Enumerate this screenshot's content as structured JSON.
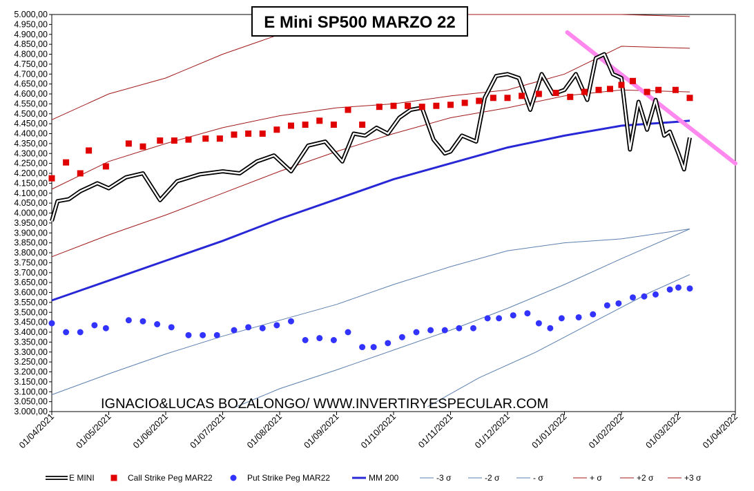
{
  "chart_data": {
    "type": "line",
    "title": "E Mini SP500 MARZO 22",
    "xlabel": "",
    "ylabel": "",
    "annotation": "IGNACIO&LUCAS BOZALONGO/ WWW.INVERTIRYESPECULAR.COM",
    "ylim": [
      3000,
      5000
    ],
    "ystep": 50,
    "x_ticks": [
      "01/04/2021",
      "01/05/2021",
      "01/06/2021",
      "01/07/2021",
      "01/08/2021",
      "01/09/2021",
      "01/10/2021",
      "01/11/2021",
      "01/12/2021",
      "01/01/2022",
      "01/02/2022",
      "01/03/2022",
      "01/04/2022"
    ],
    "y_tick_labels": [
      "3.000,00",
      "3.050,00",
      "3.100,00",
      "3.150,00",
      "3.200,00",
      "3.250,00",
      "3.300,00",
      "3.350,00",
      "3.400,00",
      "3.450,00",
      "3.500,00",
      "3.550,00",
      "3.600,00",
      "3.650,00",
      "3.700,00",
      "3.750,00",
      "3.800,00",
      "3.850,00",
      "3.900,00",
      "3.950,00",
      "4.000,00",
      "4.050,00",
      "4.100,00",
      "4.150,00",
      "4.200,00",
      "4.250,00",
      "4.300,00",
      "4.350,00",
      "4.400,00",
      "4.450,00",
      "4.500,00",
      "4.550,00",
      "4.600,00",
      "4.650,00",
      "4.700,00",
      "4.750,00",
      "4.800,00",
      "4.850,00",
      "4.900,00",
      "4.950,00",
      "5.000,00"
    ],
    "legend": "bottom",
    "grid": false,
    "series": [
      {
        "name": "E MINI",
        "kind": "line-double",
        "color": "#000000",
        "x": [
          0,
          0.1,
          0.3,
          0.5,
          0.8,
          1.0,
          1.3,
          1.6,
          1.9,
          2.2,
          2.6,
          3.0,
          3.3,
          3.6,
          3.9,
          4.2,
          4.5,
          4.8,
          5.1,
          5.3,
          5.5,
          5.7,
          5.9,
          6.1,
          6.3,
          6.5,
          6.7,
          6.9,
          7.0,
          7.2,
          7.45,
          7.6,
          7.8,
          8.0,
          8.2,
          8.4,
          8.6,
          8.8,
          9.0,
          9.2,
          9.4,
          9.55,
          9.7,
          9.85,
          10.0,
          10.15,
          10.3,
          10.45,
          10.6,
          10.75,
          10.85,
          11.0,
          11.1,
          11.2
        ],
        "y": [
          3960,
          4060,
          4070,
          4110,
          4150,
          4125,
          4180,
          4200,
          4065,
          4160,
          4195,
          4210,
          4200,
          4260,
          4290,
          4210,
          4340,
          4360,
          4260,
          4400,
          4390,
          4430,
          4400,
          4480,
          4520,
          4530,
          4370,
          4300,
          4310,
          4390,
          4360,
          4580,
          4690,
          4700,
          4680,
          4520,
          4700,
          4600,
          4620,
          4700,
          4570,
          4780,
          4800,
          4700,
          4680,
          4320,
          4560,
          4420,
          4570,
          4390,
          4410,
          4300,
          4220,
          4380
        ]
      },
      {
        "name": "Call Strike Peg MAR22",
        "kind": "markers-square",
        "color": "#e00000",
        "x": [
          0,
          0.25,
          0.5,
          0.65,
          0.95,
          1.35,
          1.6,
          1.9,
          2.15,
          2.4,
          2.7,
          2.95,
          3.2,
          3.45,
          3.7,
          3.95,
          4.2,
          4.45,
          4.7,
          4.95,
          5.2,
          5.45,
          5.75,
          6.0,
          6.25,
          6.5,
          6.75,
          7.0,
          7.25,
          7.5,
          7.75,
          8.0,
          8.25,
          8.55,
          8.85,
          9.1,
          9.35,
          9.6,
          9.8,
          10.0,
          10.2,
          10.45,
          10.65,
          10.95,
          11.2
        ],
        "y": [
          4175,
          4255,
          4200,
          4315,
          4235,
          4350,
          4335,
          4365,
          4365,
          4370,
          4375,
          4375,
          4395,
          4400,
          4400,
          4420,
          4440,
          4445,
          4465,
          4445,
          4520,
          4445,
          4535,
          4540,
          4540,
          4535,
          4540,
          4545,
          4555,
          4565,
          4580,
          4580,
          4590,
          4600,
          4605,
          4585,
          4610,
          4620,
          4625,
          4645,
          4665,
          4610,
          4620,
          4620,
          4580
        ]
      },
      {
        "name": "Put Strike Peg MAR22",
        "kind": "markers-circle",
        "color": "#3333ff",
        "x": [
          0,
          0.25,
          0.5,
          0.75,
          0.95,
          1.35,
          1.6,
          1.85,
          2.1,
          2.4,
          2.65,
          2.9,
          3.2,
          3.45,
          3.7,
          3.95,
          4.2,
          4.45,
          4.7,
          4.95,
          5.2,
          5.45,
          5.65,
          5.9,
          6.15,
          6.4,
          6.65,
          6.9,
          7.15,
          7.4,
          7.65,
          7.85,
          8.1,
          8.35,
          8.55,
          8.75,
          8.95,
          9.25,
          9.5,
          9.75,
          9.95,
          10.2,
          10.4,
          10.6,
          10.85,
          11.0,
          11.2
        ],
        "y": [
          3445,
          3400,
          3400,
          3435,
          3420,
          3460,
          3455,
          3440,
          3425,
          3385,
          3385,
          3385,
          3410,
          3425,
          3420,
          3435,
          3455,
          3360,
          3370,
          3360,
          3400,
          3325,
          3325,
          3345,
          3375,
          3400,
          3410,
          3410,
          3420,
          3420,
          3470,
          3470,
          3485,
          3495,
          3445,
          3420,
          3470,
          3475,
          3490,
          3535,
          3545,
          3575,
          3580,
          3590,
          3615,
          3625,
          3620
        ]
      },
      {
        "name": "MM 200",
        "kind": "line-thick",
        "color": "#2828d6",
        "x": [
          0,
          1,
          2,
          3,
          4,
          5,
          6,
          7,
          8,
          9,
          10,
          11,
          11.2
        ],
        "y": [
          3560,
          3660,
          3760,
          3860,
          3970,
          4070,
          4170,
          4250,
          4330,
          4390,
          4440,
          4460,
          4465
        ]
      },
      {
        "name": "-3 σ",
        "kind": "line-thin",
        "color": "#5a7fb0",
        "x": [
          6.6,
          7.5,
          8.5,
          9.5,
          10.5,
          11.2
        ],
        "y": [
          3025,
          3170,
          3300,
          3450,
          3600,
          3690
        ]
      },
      {
        "name": "-2 σ",
        "kind": "line-thin",
        "color": "#5a7fb0",
        "x": [
          0,
          1,
          2,
          3,
          4,
          5,
          6,
          7,
          8,
          9,
          10,
          11.2
        ],
        "y": [
          3085,
          3190,
          3290,
          3380,
          3460,
          3540,
          3640,
          3730,
          3810,
          3850,
          3870,
          3920
        ]
      },
      {
        "name": "- σ",
        "kind": "line-thin",
        "color": "#5a7fb0",
        "x": [
          3.2,
          4,
          5,
          6,
          7,
          8,
          9,
          10,
          11.2
        ],
        "y": [
          3020,
          3115,
          3210,
          3310,
          3410,
          3520,
          3640,
          3770,
          3920
        ]
      },
      {
        "name": "+ σ",
        "kind": "line-thin",
        "color": "#a01818",
        "x": [
          0,
          1,
          2,
          3,
          4,
          5,
          6,
          7,
          8,
          9,
          10,
          11.2
        ],
        "y": [
          3780,
          3890,
          3990,
          4100,
          4210,
          4310,
          4400,
          4480,
          4530,
          4590,
          4620,
          4610
        ]
      },
      {
        "name": "+2 σ",
        "kind": "line-thin",
        "color": "#a01818",
        "x": [
          0,
          1,
          2,
          3,
          4,
          5,
          6,
          7,
          8,
          9,
          10,
          11.2
        ],
        "y": [
          4120,
          4260,
          4350,
          4430,
          4490,
          4530,
          4550,
          4590,
          4620,
          4700,
          4840,
          4830
        ]
      },
      {
        "name": "+3 σ",
        "kind": "line-thin",
        "color": "#a01818",
        "x": [
          0,
          1,
          2,
          3,
          4,
          4.5,
          5,
          6,
          7,
          8,
          9,
          10,
          11.2
        ],
        "y": [
          4470,
          4600,
          4680,
          4800,
          4900,
          4950,
          4980,
          5000,
          5000,
          5000,
          5000,
          5000,
          4990
        ]
      },
      {
        "name": "",
        "kind": "trend",
        "color": "#ff88ee",
        "x": [
          9.05,
          12.0
        ],
        "y": [
          4910,
          4250
        ]
      }
    ]
  }
}
